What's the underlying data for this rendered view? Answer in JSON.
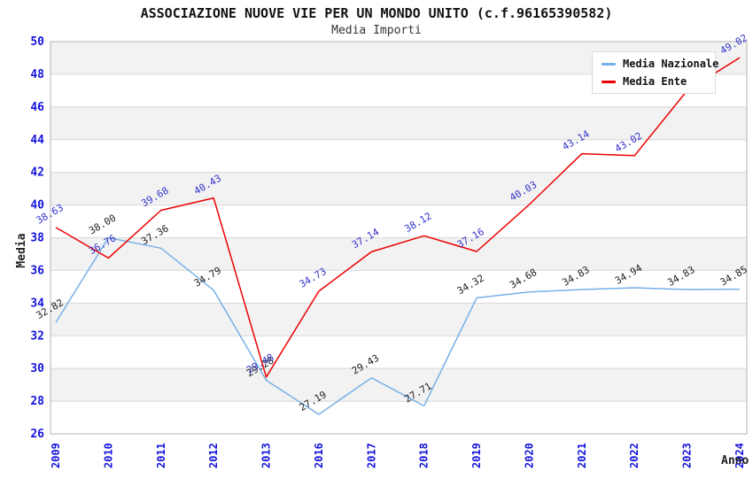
{
  "header": {
    "title": "ASSOCIAZIONE NUOVE VIE PER UN MONDO UNITO (c.f.96165390582)",
    "subtitle": "Media Importi"
  },
  "legend": {
    "items": [
      {
        "label": "Media Nazionale",
        "color": "#77b0e8"
      },
      {
        "label": "Media Ente",
        "color": "#ee0000"
      }
    ]
  },
  "colors": {
    "axis_tick_blue": "#1414dd",
    "ente_label_blue": "#3333cc",
    "nazionale_label_black": "#222222",
    "band_gray": "#f2f2f2",
    "gridline": "#d8d8d8",
    "plot_border": "#b3b3b3"
  },
  "axes": {
    "y_label": "Media",
    "x_label": "Anno",
    "y_ticks": [
      50,
      48,
      46,
      44,
      42,
      40,
      38,
      36,
      34,
      32,
      30,
      28,
      26
    ],
    "x_ticks": [
      "2009",
      "2010",
      "2011",
      "2012",
      "2013",
      "2016",
      "2017",
      "2018",
      "2019",
      "2020",
      "2021",
      "2022",
      "2023",
      "2024"
    ]
  },
  "chart_data": {
    "type": "line",
    "title": "ASSOCIAZIONE NUOVE VIE PER UN MONDO UNITO (c.f.96165390582)",
    "subtitle": "Media Importi",
    "xlabel": "Anno",
    "ylabel": "Media",
    "ylim": [
      26,
      50
    ],
    "ytick_step": 2,
    "grid": "horizontal-bands",
    "legend_position": "top-right",
    "x": [
      "2009",
      "2010",
      "2011",
      "2012",
      "2013",
      "2016",
      "2017",
      "2018",
      "2019",
      "2020",
      "2021",
      "2022",
      "2023",
      "2024"
    ],
    "series": [
      {
        "name": "Media Nazionale",
        "color": "#77b0e8",
        "label_color": "#222222",
        "values": [
          32.82,
          38.0,
          37.36,
          34.79,
          29.28,
          27.19,
          29.43,
          27.71,
          34.32,
          34.68,
          34.83,
          34.94,
          34.83,
          34.85
        ]
      },
      {
        "name": "Media Ente",
        "color": "#ee0000",
        "label_color": "#3333cc",
        "values": [
          38.63,
          36.76,
          39.68,
          40.43,
          29.48,
          34.73,
          37.14,
          38.12,
          37.16,
          40.03,
          43.14,
          43.02,
          47.0,
          49.02
        ]
      }
    ]
  }
}
